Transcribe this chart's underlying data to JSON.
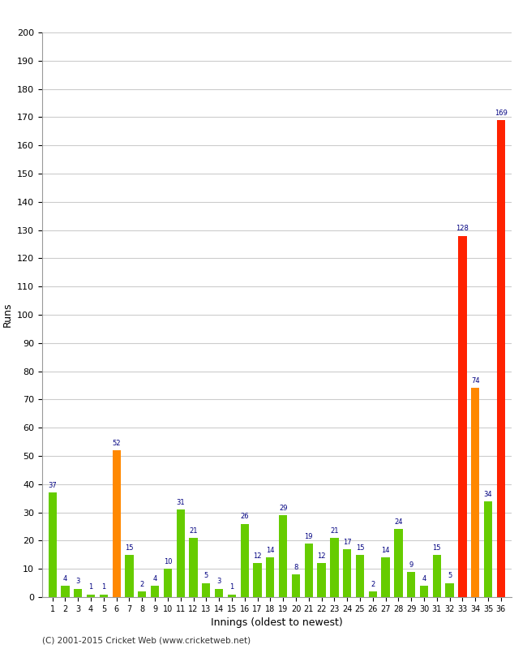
{
  "xlabel": "Innings (oldest to newest)",
  "ylabel": "Runs",
  "footer": "(C) 2001-2015 Cricket Web (www.cricketweb.net)",
  "ylim": [
    0,
    200
  ],
  "yticks": [
    0,
    10,
    20,
    30,
    40,
    50,
    60,
    70,
    80,
    90,
    100,
    110,
    120,
    130,
    140,
    150,
    160,
    170,
    180,
    190,
    200
  ],
  "innings": [
    1,
    2,
    3,
    4,
    5,
    6,
    7,
    8,
    9,
    10,
    11,
    12,
    13,
    14,
    15,
    16,
    17,
    18,
    19,
    20,
    21,
    22,
    23,
    24,
    25,
    26,
    27,
    28,
    29,
    30,
    31,
    32,
    33,
    34,
    35,
    36
  ],
  "values": [
    37,
    4,
    3,
    1,
    1,
    52,
    15,
    2,
    4,
    10,
    31,
    21,
    5,
    3,
    1,
    26,
    12,
    14,
    29,
    8,
    19,
    12,
    21,
    17,
    15,
    2,
    14,
    24,
    9,
    4,
    15,
    5,
    128,
    74,
    34,
    169
  ],
  "colors": [
    "#66cc00",
    "#66cc00",
    "#66cc00",
    "#66cc00",
    "#66cc00",
    "#ff8800",
    "#66cc00",
    "#66cc00",
    "#66cc00",
    "#66cc00",
    "#66cc00",
    "#66cc00",
    "#66cc00",
    "#66cc00",
    "#66cc00",
    "#66cc00",
    "#66cc00",
    "#66cc00",
    "#66cc00",
    "#66cc00",
    "#66cc00",
    "#66cc00",
    "#66cc00",
    "#66cc00",
    "#66cc00",
    "#66cc00",
    "#66cc00",
    "#66cc00",
    "#66cc00",
    "#66cc00",
    "#66cc00",
    "#66cc00",
    "#ff2200",
    "#ff8800",
    "#66cc00",
    "#ff2200"
  ],
  "label_color": "#000080",
  "bg_color": "#ffffff",
  "grid_color": "#cccccc",
  "bar_width": 0.65,
  "figsize": [
    6.5,
    8.0
  ],
  "dpi": 100
}
